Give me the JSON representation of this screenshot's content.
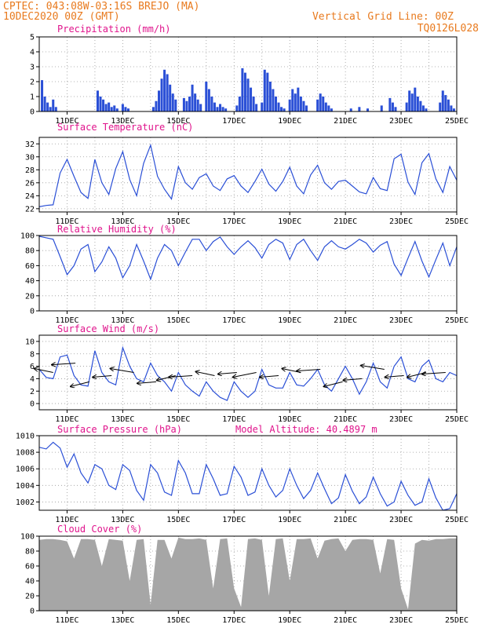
{
  "header": {
    "line1": "CPTEC:   043:08W-03:16S  BREJO (MA)",
    "line2": "10DEC2020 00Z (GMT)",
    "grid_note": "Vertical Grid Line: 00Z",
    "run_id": "TQ0126L028"
  },
  "colors": {
    "header": "#e87a1e",
    "panel_title": "#e0148c",
    "series": "#2a4fd6",
    "cloud_fill": "#a6a6a6",
    "wind_arrow": "#000000",
    "grid": "#9a9a9a"
  },
  "x_axis": {
    "unit": "days from 10DEC2020 00Z",
    "range": [
      0,
      15
    ],
    "tick_days": [
      1,
      3,
      5,
      7,
      9,
      11,
      13,
      15
    ],
    "tick_labels": [
      "11DEC",
      "13DEC",
      "15DEC",
      "17DEC",
      "19DEC",
      "21DEC",
      "23DEC",
      "25DEC"
    ]
  },
  "chart_data": [
    {
      "id": "precip",
      "type": "bar",
      "title": "Precipitation (mm/h)",
      "ylim": [
        0,
        5
      ],
      "yticks": [
        0,
        1,
        2,
        3,
        4,
        5
      ],
      "grid": true,
      "x": [
        0.1,
        0.2,
        0.3,
        0.4,
        0.5,
        0.6,
        2.1,
        2.2,
        2.3,
        2.4,
        2.5,
        2.6,
        2.7,
        2.8,
        3.0,
        3.1,
        3.2,
        4.1,
        4.2,
        4.3,
        4.4,
        4.5,
        4.6,
        4.7,
        4.8,
        4.9,
        5.2,
        5.3,
        5.4,
        5.5,
        5.6,
        5.7,
        5.8,
        6.0,
        6.1,
        6.2,
        6.3,
        6.4,
        6.5,
        6.6,
        6.7,
        7.1,
        7.2,
        7.3,
        7.4,
        7.5,
        7.6,
        7.7,
        7.8,
        8.0,
        8.1,
        8.2,
        8.3,
        8.4,
        8.5,
        8.6,
        8.7,
        8.8,
        9.0,
        9.1,
        9.2,
        9.3,
        9.4,
        9.5,
        9.6,
        10.0,
        10.1,
        10.2,
        10.3,
        10.4,
        10.5,
        11.2,
        11.5,
        11.8,
        12.3,
        12.6,
        12.7,
        12.8,
        13.2,
        13.3,
        13.4,
        13.5,
        13.6,
        13.7,
        13.8,
        13.9,
        14.4,
        14.5,
        14.6,
        14.7,
        14.8,
        14.9
      ],
      "values": [
        2.1,
        1.0,
        0.6,
        0.3,
        0.8,
        0.3,
        1.4,
        1.0,
        0.8,
        0.5,
        0.6,
        0.3,
        0.4,
        0.2,
        0.5,
        0.3,
        0.2,
        0.3,
        0.7,
        1.4,
        2.2,
        2.8,
        2.5,
        1.8,
        1.2,
        0.8,
        0.9,
        0.7,
        1.0,
        1.8,
        1.2,
        0.8,
        0.5,
        2.0,
        1.5,
        1.0,
        0.6,
        0.3,
        0.5,
        0.3,
        0.2,
        0.4,
        1.0,
        2.9,
        2.6,
        2.2,
        1.6,
        1.0,
        0.5,
        0.6,
        2.8,
        2.6,
        2.0,
        1.5,
        1.0,
        0.6,
        0.3,
        0.2,
        0.8,
        1.5,
        1.2,
        1.6,
        1.0,
        0.7,
        0.4,
        0.8,
        1.2,
        1.0,
        0.6,
        0.4,
        0.2,
        0.2,
        0.3,
        0.2,
        0.4,
        0.9,
        0.6,
        0.3,
        0.6,
        1.4,
        1.2,
        1.6,
        1.0,
        0.7,
        0.4,
        0.2,
        0.6,
        1.4,
        1.1,
        0.8,
        0.4,
        0.2
      ]
    },
    {
      "id": "temp",
      "type": "line",
      "title": "Surface Temperature (nC)",
      "ylim": [
        21.5,
        33
      ],
      "yticks": [
        22,
        24,
        26,
        28,
        30,
        32
      ],
      "grid": true,
      "x": [
        0,
        0.25,
        0.5,
        0.75,
        1.0,
        1.25,
        1.5,
        1.75,
        2.0,
        2.25,
        2.5,
        2.75,
        3.0,
        3.25,
        3.5,
        3.75,
        4.0,
        4.25,
        4.5,
        4.75,
        5.0,
        5.25,
        5.5,
        5.75,
        6.0,
        6.25,
        6.5,
        6.75,
        7.0,
        7.25,
        7.5,
        7.75,
        8.0,
        8.25,
        8.5,
        8.75,
        9.0,
        9.25,
        9.5,
        9.75,
        10.0,
        10.25,
        10.5,
        10.75,
        11.0,
        11.25,
        11.5,
        11.75,
        12.0,
        12.25,
        12.5,
        12.75,
        13.0,
        13.25,
        13.5,
        13.75,
        14.0,
        14.25,
        14.5,
        14.75,
        15.0
      ],
      "values": [
        22.3,
        22.5,
        22.6,
        27.5,
        29.6,
        27.0,
        24.5,
        23.6,
        29.6,
        26.0,
        24.2,
        28.2,
        30.8,
        26.5,
        24.0,
        29.0,
        31.8,
        27.0,
        25.0,
        23.5,
        28.5,
        26.0,
        25.0,
        26.8,
        27.4,
        25.5,
        24.8,
        26.6,
        27.1,
        25.5,
        24.5,
        26.2,
        28.1,
        25.8,
        24.7,
        26.2,
        28.4,
        25.5,
        24.3,
        27.2,
        28.7,
        26.0,
        25.0,
        26.2,
        26.4,
        25.5,
        24.6,
        24.3,
        26.8,
        25.1,
        24.8,
        29.7,
        30.4,
        26.1,
        24.2,
        29.1,
        30.5,
        26.6,
        24.5,
        28.5,
        26.4
      ]
    },
    {
      "id": "rh",
      "type": "line",
      "title": "Relative Humidity (%)",
      "ylim": [
        0,
        100
      ],
      "yticks": [
        0,
        20,
        40,
        60,
        80,
        100
      ],
      "grid": true,
      "x": [
        0,
        0.25,
        0.5,
        0.75,
        1.0,
        1.25,
        1.5,
        1.75,
        2.0,
        2.25,
        2.5,
        2.75,
        3.0,
        3.25,
        3.5,
        3.75,
        4.0,
        4.25,
        4.5,
        4.75,
        5.0,
        5.25,
        5.5,
        5.75,
        6.0,
        6.25,
        6.5,
        6.75,
        7.0,
        7.25,
        7.5,
        7.75,
        8.0,
        8.25,
        8.5,
        8.75,
        9.0,
        9.25,
        9.5,
        9.75,
        10.0,
        10.25,
        10.5,
        10.75,
        11.0,
        11.25,
        11.5,
        11.75,
        12.0,
        12.25,
        12.5,
        12.75,
        13.0,
        13.25,
        13.5,
        13.75,
        14.0,
        14.25,
        14.5,
        14.75,
        15.0
      ],
      "values": [
        99,
        97,
        95,
        72,
        48,
        60,
        82,
        88,
        52,
        65,
        85,
        70,
        44,
        60,
        88,
        66,
        42,
        70,
        88,
        80,
        60,
        78,
        95,
        95,
        80,
        92,
        98,
        85,
        75,
        85,
        93,
        84,
        70,
        88,
        95,
        90,
        68,
        88,
        95,
        80,
        67,
        85,
        93,
        85,
        82,
        88,
        95,
        90,
        78,
        87,
        92,
        62,
        47,
        70,
        92,
        66,
        45,
        68,
        90,
        60,
        85
      ]
    },
    {
      "id": "wind",
      "type": "line",
      "title": "Surface Wind (m/s)",
      "ylim": [
        -1,
        11
      ],
      "yticks": [
        0,
        2,
        4,
        6,
        8,
        10
      ],
      "grid": true,
      "x": [
        0,
        0.25,
        0.5,
        0.75,
        1.0,
        1.25,
        1.5,
        1.75,
        2.0,
        2.25,
        2.5,
        2.75,
        3.0,
        3.25,
        3.5,
        3.75,
        4.0,
        4.25,
        4.5,
        4.75,
        5.0,
        5.25,
        5.5,
        5.75,
        6.0,
        6.25,
        6.5,
        6.75,
        7.0,
        7.25,
        7.5,
        7.75,
        8.0,
        8.25,
        8.5,
        8.75,
        9.0,
        9.25,
        9.5,
        9.75,
        10.0,
        10.25,
        10.5,
        10.75,
        11.0,
        11.25,
        11.5,
        11.75,
        12.0,
        12.25,
        12.5,
        12.75,
        13.0,
        13.25,
        13.5,
        13.75,
        14.0,
        14.25,
        14.5,
        14.75,
        15.0
      ],
      "values": [
        5.5,
        4.2,
        4.0,
        7.5,
        7.8,
        4.5,
        3.0,
        2.8,
        8.5,
        5.0,
        3.5,
        3.0,
        9.0,
        6.0,
        4.0,
        3.5,
        6.5,
        4.5,
        3.5,
        2.0,
        5.0,
        3.0,
        2.0,
        1.2,
        3.5,
        2.0,
        1.0,
        0.5,
        3.5,
        2.0,
        1.0,
        2.0,
        5.5,
        3.0,
        2.5,
        2.5,
        5.0,
        3.0,
        2.8,
        4.0,
        5.5,
        3.0,
        2.0,
        4.0,
        6.0,
        4.0,
        1.5,
        3.5,
        6.5,
        3.5,
        2.5,
        6.0,
        7.5,
        4.0,
        3.5,
        6.0,
        7.0,
        4.0,
        3.5,
        5.0,
        4.5
      ]
    },
    {
      "id": "pressure",
      "type": "line",
      "title": "Surface Pressure (hPa)",
      "annotation": "Model Altitude: 40.4897 m",
      "ylim": [
        1001,
        1010
      ],
      "yticks": [
        1002,
        1004,
        1006,
        1008,
        1010
      ],
      "grid": true,
      "x": [
        0,
        0.25,
        0.5,
        0.75,
        1.0,
        1.25,
        1.5,
        1.75,
        2.0,
        2.25,
        2.5,
        2.75,
        3.0,
        3.25,
        3.5,
        3.75,
        4.0,
        4.25,
        4.5,
        4.75,
        5.0,
        5.25,
        5.5,
        5.75,
        6.0,
        6.25,
        6.5,
        6.75,
        7.0,
        7.25,
        7.5,
        7.75,
        8.0,
        8.25,
        8.5,
        8.75,
        9.0,
        9.25,
        9.5,
        9.75,
        10.0,
        10.25,
        10.5,
        10.75,
        11.0,
        11.25,
        11.5,
        11.75,
        12.0,
        12.25,
        12.5,
        12.75,
        13.0,
        13.25,
        13.5,
        13.75,
        14.0,
        14.25,
        14.5,
        14.75,
        15.0
      ],
      "values": [
        1008.6,
        1008.4,
        1009.2,
        1008.5,
        1006.2,
        1007.8,
        1005.5,
        1004.3,
        1006.5,
        1006.0,
        1004.0,
        1003.5,
        1006.5,
        1005.8,
        1003.4,
        1002.2,
        1006.5,
        1005.5,
        1003.2,
        1002.8,
        1007.0,
        1005.5,
        1003.0,
        1003.0,
        1006.5,
        1004.8,
        1002.8,
        1003.0,
        1006.3,
        1005.0,
        1002.8,
        1003.2,
        1006.0,
        1004.0,
        1002.6,
        1003.4,
        1006.0,
        1004.0,
        1002.4,
        1003.4,
        1005.5,
        1003.6,
        1001.8,
        1002.5,
        1005.3,
        1003.3,
        1001.8,
        1002.6,
        1005.0,
        1003.0,
        1001.5,
        1002.0,
        1004.5,
        1002.8,
        1001.6,
        1002.0,
        1004.8,
        1002.5,
        1001.0,
        1001.2,
        1003.0
      ]
    },
    {
      "id": "cloud",
      "type": "area",
      "title": "Cloud Cover (%)",
      "ylim": [
        0,
        100
      ],
      "yticks": [
        0,
        20,
        40,
        60,
        80,
        100
      ],
      "grid": true,
      "x": [
        0,
        0.25,
        0.5,
        0.75,
        1.0,
        1.25,
        1.5,
        1.75,
        2.0,
        2.25,
        2.5,
        2.75,
        3.0,
        3.25,
        3.5,
        3.75,
        4.0,
        4.25,
        4.5,
        4.75,
        5.0,
        5.25,
        5.5,
        5.75,
        6.0,
        6.25,
        6.5,
        6.75,
        7.0,
        7.25,
        7.5,
        7.75,
        8.0,
        8.25,
        8.5,
        8.75,
        9.0,
        9.25,
        9.5,
        9.75,
        10.0,
        10.25,
        10.5,
        10.75,
        11.0,
        11.25,
        11.5,
        11.75,
        12.0,
        12.25,
        12.5,
        12.75,
        13.0,
        13.25,
        13.5,
        13.75,
        14.0,
        14.25,
        14.5,
        14.75,
        15.0
      ],
      "values": [
        95,
        96,
        96,
        95,
        93,
        70,
        96,
        96,
        95,
        60,
        96,
        95,
        94,
        40,
        95,
        96,
        8,
        95,
        95,
        70,
        98,
        96,
        96,
        97,
        95,
        30,
        96,
        97,
        30,
        5,
        96,
        97,
        95,
        20,
        96,
        97,
        40,
        96,
        96,
        97,
        70,
        94,
        96,
        97,
        80,
        95,
        96,
        96,
        95,
        50,
        96,
        95,
        30,
        2,
        90,
        95,
        94,
        96,
        96,
        97,
        97
      ]
    },
    {
      "id": "wind_vectors",
      "type": "scatter",
      "x": [
        0.5,
        1.3,
        1.8,
        2.6,
        3.4,
        4.2,
        4.9,
        5.5,
        6.3,
        7.1,
        7.8,
        8.6,
        9.4,
        10.1,
        10.9,
        11.6,
        12.4,
        13.1,
        13.9,
        14.6
      ],
      "values": [
        5.0,
        6.5,
        3.5,
        4.5,
        5.0,
        3.5,
        4.5,
        4.5,
        4.5,
        5.0,
        5.0,
        4.5,
        5.0,
        5.5,
        3.5,
        4.0,
        5.5,
        4.5,
        5.0,
        5.0
      ]
    }
  ]
}
